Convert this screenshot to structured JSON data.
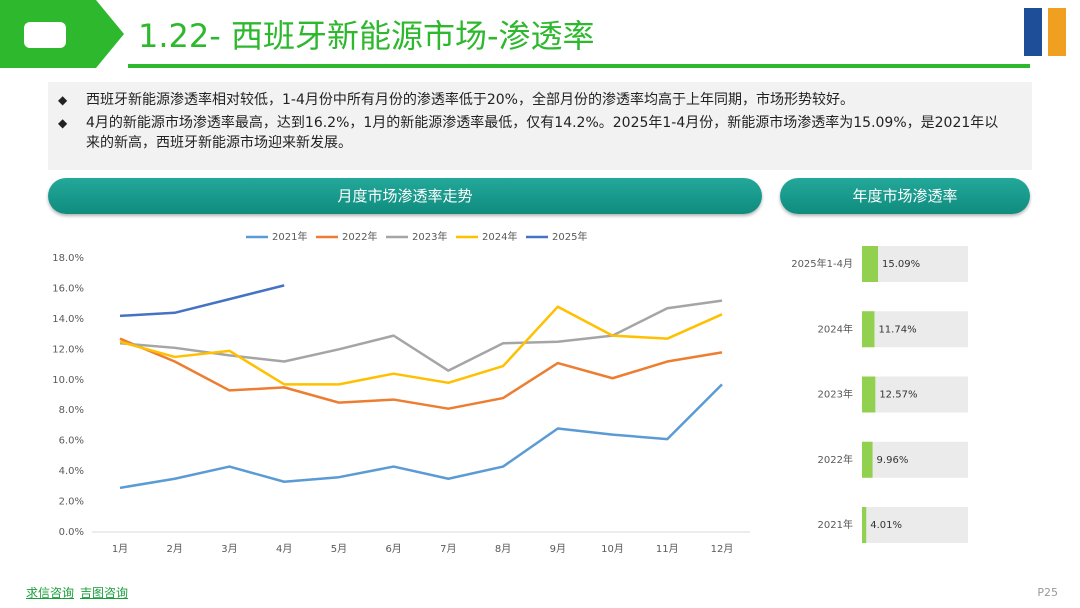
{
  "header": {
    "title": "1.22- 西班牙新能源市场-渗透率"
  },
  "bullets": [
    "西班牙新能源渗透率相对较低，1-4月份中所有月份的渗透率低于20%，全部月份的渗透率均高于上年同期，市场形势较好。",
    "4月的新能源市场渗透率最高，达到16.2%，1月的新能源渗透率最低，仅有14.2%。2025年1-4月份，新能源市场渗透率为15.09%，是2021年以来的新高，西班牙新能源市场迎来新发展。"
  ],
  "chart_data": [
    {
      "type": "line",
      "title": "月度市场渗透率走势",
      "categories": [
        "1月",
        "2月",
        "3月",
        "4月",
        "5月",
        "6月",
        "7月",
        "8月",
        "9月",
        "10月",
        "11月",
        "12月"
      ],
      "series": [
        {
          "name": "2021年",
          "color": "#5b9bd5",
          "values": [
            2.9,
            3.5,
            4.3,
            3.3,
            3.6,
            4.3,
            3.5,
            4.3,
            6.8,
            6.4,
            6.1,
            9.7
          ]
        },
        {
          "name": "2022年",
          "color": "#ed7d31",
          "values": [
            12.7,
            11.2,
            9.3,
            9.5,
            8.5,
            8.7,
            8.1,
            8.8,
            11.1,
            10.1,
            11.2,
            11.8
          ]
        },
        {
          "name": "2023年",
          "color": "#a5a5a5",
          "values": [
            12.4,
            12.1,
            11.6,
            11.2,
            12.0,
            12.9,
            10.6,
            12.4,
            12.5,
            12.9,
            14.7,
            15.2
          ]
        },
        {
          "name": "2024年",
          "color": "#ffc000",
          "values": [
            12.5,
            11.5,
            11.9,
            9.7,
            9.7,
            10.4,
            9.8,
            10.9,
            14.8,
            12.9,
            12.7,
            14.3
          ]
        },
        {
          "name": "2025年",
          "color": "#4472c4",
          "values": [
            14.2,
            14.4,
            15.3,
            16.2,
            null,
            null,
            null,
            null,
            null,
            null,
            null,
            null
          ]
        }
      ],
      "ylim": [
        0,
        18
      ],
      "yticks": [
        {
          "value": 0,
          "label": "0.0%"
        },
        {
          "value": 2,
          "label": "2.0%"
        },
        {
          "value": 4,
          "label": "4.0%"
        },
        {
          "value": 6,
          "label": "6.0%"
        },
        {
          "value": 8,
          "label": "8.0%"
        },
        {
          "value": 10,
          "label": "10.0%"
        },
        {
          "value": 12,
          "label": "12.0%"
        },
        {
          "value": 14,
          "label": "14.0%"
        },
        {
          "value": 16,
          "label": "16.0%"
        },
        {
          "value": 18,
          "label": "18.0%"
        }
      ],
      "grid": false,
      "legend": "top"
    },
    {
      "type": "hbar",
      "title": "年度市场渗透率",
      "categories": [
        "2025年1-4月",
        "2024年",
        "2023年",
        "2022年",
        "2021年"
      ],
      "values": [
        15.09,
        11.74,
        12.57,
        9.96,
        4.01
      ],
      "value_labels": [
        "15.09%",
        "11.74%",
        "12.57%",
        "9.96%",
        "4.01%"
      ],
      "color": "#92d050",
      "xlim": [
        0,
        100
      ]
    }
  ],
  "footer": {
    "links": [
      "求信咨询",
      "吉图咨询"
    ],
    "page": "P25"
  }
}
